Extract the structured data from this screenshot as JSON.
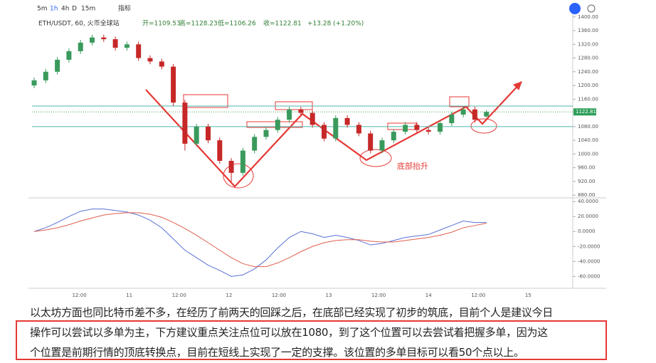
{
  "toolbar": [
    "5m",
    "1h",
    "4h",
    "D",
    "15m",
    "指标"
  ],
  "chart_data": [
    {
      "type": "candlestick",
      "symbol": "ETH/USDT, 60, 火币全球站",
      "ohlc_header": [
        "开=1109.53",
        "高=1128.23",
        "低=1106.26",
        "收=1122.81",
        "+13.28 (+1.20%)"
      ],
      "open": [
        1200,
        1215,
        1240,
        1275,
        1300,
        1325,
        1340,
        1335,
        1310,
        1320,
        1280,
        1270,
        1255,
        1150,
        1030,
        1080,
        1040,
        980,
        945,
        1010,
        1050,
        1070,
        1100,
        1130,
        1120,
        1085,
        1045,
        1105,
        1085,
        1060,
        1010,
        1040,
        1065,
        1085,
        1070,
        1065,
        1090,
        1115,
        1130,
        1109.53
      ],
      "high": [
        1223,
        1248,
        1283,
        1308,
        1333,
        1348,
        1348,
        1343,
        1328,
        1328,
        1288,
        1278,
        1263,
        1158,
        1088,
        1088,
        1048,
        988,
        1018,
        1058,
        1078,
        1108,
        1138,
        1138,
        1128,
        1093,
        1113,
        1113,
        1093,
        1068,
        1048,
        1073,
        1093,
        1093,
        1078,
        1098,
        1123,
        1138,
        1138,
        1128.23
      ],
      "low": [
        1192,
        1207,
        1232,
        1267,
        1292,
        1317,
        1327,
        1302,
        1302,
        1272,
        1262,
        1247,
        1140,
        1010,
        1022,
        1032,
        972,
        920,
        937,
        1002,
        1042,
        1062,
        1092,
        1112,
        1077,
        1037,
        1037,
        1077,
        1052,
        1002,
        1002,
        1032,
        1057,
        1062,
        1057,
        1057,
        1082,
        1107,
        1092,
        1106.26
      ],
      "close": [
        1215,
        1240,
        1275,
        1300,
        1325,
        1340,
        1335,
        1310,
        1320,
        1280,
        1270,
        1255,
        1150,
        1030,
        1080,
        1040,
        980,
        945,
        1010,
        1050,
        1070,
        1100,
        1130,
        1120,
        1085,
        1045,
        1105,
        1085,
        1060,
        1010,
        1040,
        1065,
        1085,
        1070,
        1065,
        1090,
        1115,
        1130,
        1100,
        1122.81
      ],
      "up_color": "#3a9a5c",
      "down_color": "#c62828",
      "last_price": 1122.81,
      "hlines": [
        1140,
        1080
      ],
      "annotation": "底部抬升",
      "ylim": [
        872,
        1412
      ],
      "yticks": [
        {
          "value": 1400,
          "label": "1400.00"
        },
        {
          "value": 1360,
          "label": "1360.00"
        },
        {
          "value": 1320,
          "label": "1320.00"
        },
        {
          "value": 1280,
          "label": "1280.00"
        },
        {
          "value": 1240,
          "label": "1240.00"
        },
        {
          "value": 1200,
          "label": "1200.00"
        },
        {
          "value": 1160,
          "label": "1160.00"
        },
        {
          "value": 1080,
          "label": "1080.00"
        },
        {
          "value": 1040,
          "label": "1040.00"
        },
        {
          "value": 1000,
          "label": "1000.00"
        },
        {
          "value": 960,
          "label": "960.00"
        },
        {
          "value": 920,
          "label": "920.00"
        },
        {
          "value": 880,
          "label": "880.00"
        }
      ],
      "xticks": [
        {
          "value": 3.9,
          "label": "12:00"
        },
        {
          "value": 8.2,
          "label": "11"
        },
        {
          "value": 12.5,
          "label": "12:00"
        },
        {
          "value": 16.8,
          "label": "12"
        },
        {
          "value": 21.1,
          "label": "12:00"
        },
        {
          "value": 25.4,
          "label": "13"
        },
        {
          "value": 29.7,
          "label": "12:00"
        },
        {
          "value": 34.0,
          "label": "14"
        },
        {
          "value": 38.3,
          "label": "12:00"
        },
        {
          "value": 42.6,
          "label": "15"
        }
      ]
    },
    {
      "type": "line",
      "series": [
        {
          "color": "#5a6fd6",
          "values": [
            0,
            5,
            12,
            20,
            27,
            30,
            30,
            28,
            26,
            22,
            15,
            5,
            -10,
            -25,
            -35,
            -45,
            -52,
            -60,
            -58,
            -50,
            -38,
            -22,
            -8,
            0,
            -3,
            -8,
            -5,
            -8,
            -12,
            -18,
            -16,
            -12,
            -8,
            -6,
            -4,
            2,
            8,
            14,
            12,
            12
          ]
        },
        {
          "color": "#e0604f",
          "values": [
            0,
            2,
            5,
            9,
            14,
            18,
            22,
            24,
            25,
            25,
            23,
            19,
            12,
            4,
            -5,
            -15,
            -25,
            -35,
            -43,
            -47,
            -47,
            -42,
            -35,
            -27,
            -20,
            -15,
            -12,
            -11,
            -11,
            -13,
            -14,
            -14,
            -12,
            -10,
            -8,
            -5,
            -1,
            5,
            8,
            11
          ]
        }
      ],
      "ylim": [
        -73,
        43
      ],
      "yticks": [
        {
          "value": 40,
          "label": "40.0000"
        },
        {
          "value": 20,
          "label": "20.0000"
        },
        {
          "value": 0,
          "label": "0.0000"
        },
        {
          "value": -20,
          "label": "-20.0000"
        },
        {
          "value": -40,
          "label": "-40.0000"
        },
        {
          "value": -60,
          "label": "-60.0000"
        }
      ]
    }
  ],
  "text": [
    "以太坊方面也同比特币差不多，在经历了前两天的回踩之后，在底部已经实现了初步的筑底，目前个人是建议今日",
    "操作可以尝试以多单为主，下方建议重点关注点位可以放在1080，到了这个位置可以去尝试着把握多单，因为这",
    "个位置是前期行情的顶底转换点，目前在短线上实现了一定的支撑。该位置的多单目标可以看50个点以上。"
  ]
}
